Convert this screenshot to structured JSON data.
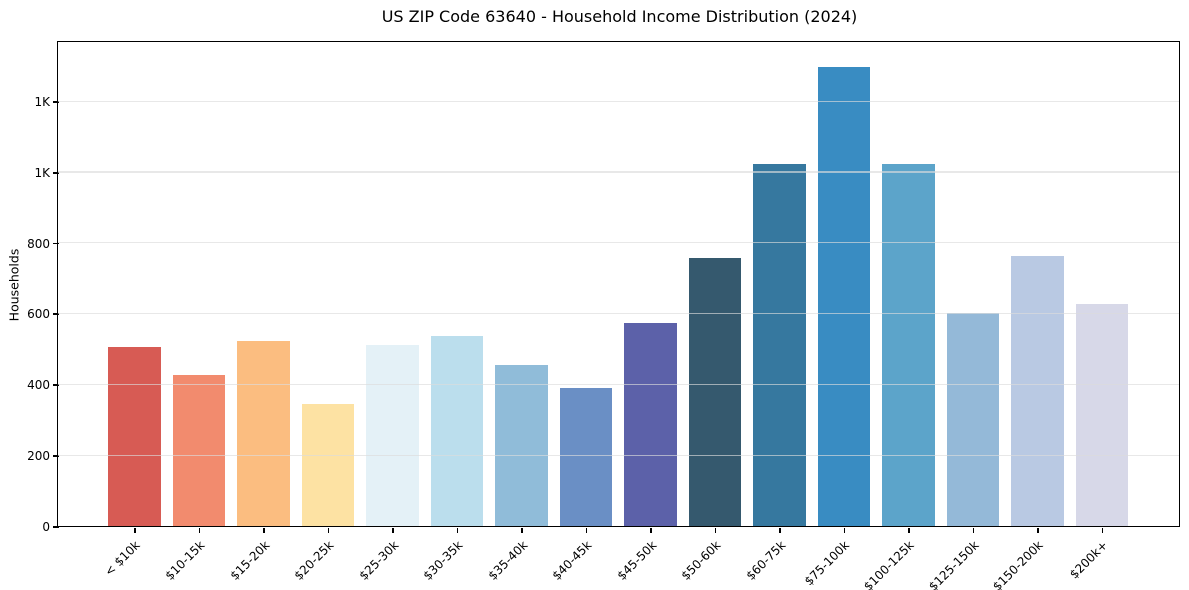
{
  "figure": {
    "background": "#ffffff"
  },
  "chart_data": {
    "type": "bar",
    "title": "US ZIP Code 63640 - Household Income Distribution (2024)",
    "xlabel": "",
    "ylabel": "Households",
    "categories": [
      "< $10k",
      "$10-15k",
      "$15-20k",
      "$20-25k",
      "$25-30k",
      "$30-35k",
      "$35-40k",
      "$40-45k",
      "$45-50k",
      "$50-60k",
      "$60-75k",
      "$75-100k",
      "$100-125k",
      "$125-150k",
      "$150-200k",
      "$200k+"
    ],
    "values": [
      505,
      427,
      523,
      346,
      512,
      537,
      455,
      390,
      572,
      757,
      1022,
      1297,
      1022,
      603,
      762,
      628
    ],
    "bar_colors": [
      "#d75b54",
      "#f28b6e",
      "#fbbd80",
      "#fde2a3",
      "#e4f1f7",
      "#bbdeed",
      "#90bcd9",
      "#6a8fc5",
      "#5c61a9",
      "#35596e",
      "#36789f",
      "#398cc2",
      "#5ca4ca",
      "#94b9d8",
      "#b9c9e3",
      "#d7d8e8"
    ],
    "ylim": [
      0,
      1367
    ],
    "yticks": {
      "values": [
        0,
        200,
        400,
        600,
        800,
        1000,
        1200
      ],
      "labels": [
        "0",
        "200",
        "400",
        "600",
        "800",
        "1K",
        "1K"
      ]
    },
    "grid": "horizontal-light",
    "grid_color": "#dcdcdc",
    "axis_color": "#000000",
    "legend": false
  }
}
